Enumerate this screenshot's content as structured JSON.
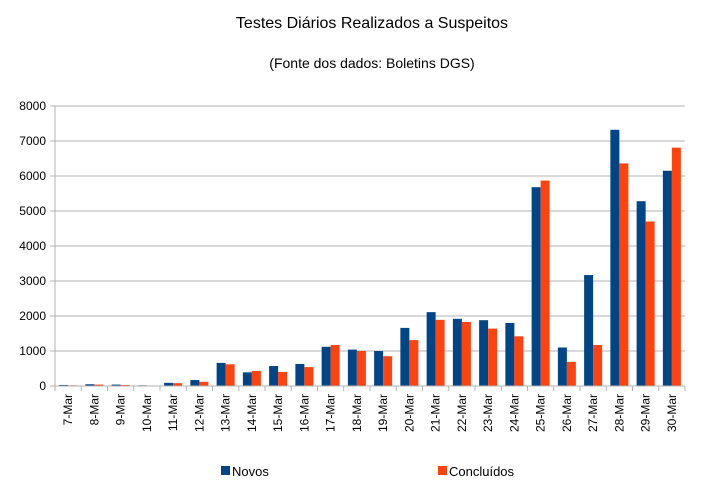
{
  "chart_data": {
    "type": "bar",
    "title": "Testes Diários Realizados a Suspeitos",
    "subtitle": "(Fonte dos dados: Boletins DGS)",
    "xlabel": "",
    "ylabel": "",
    "ylim": [
      0,
      8000
    ],
    "yticks": [
      0,
      1000,
      2000,
      3000,
      4000,
      5000,
      6000,
      7000,
      8000
    ],
    "grid": true,
    "legend_position": "bottom",
    "categories": [
      "7-Mar",
      "8-Mar",
      "9-Mar",
      "10-Mar",
      "11-Mar",
      "12-Mar",
      "13-Mar",
      "14-Mar",
      "15-Mar",
      "16-Mar",
      "17-Mar",
      "18-Mar",
      "19-Mar",
      "20-Mar",
      "21-Mar",
      "22-Mar",
      "23-Mar",
      "24-Mar",
      "25-Mar",
      "26-Mar",
      "27-Mar",
      "28-Mar",
      "29-Mar",
      "30-Mar"
    ],
    "series": [
      {
        "name": "Novos",
        "color": "#004586",
        "values": [
          30,
          50,
          40,
          20,
          90,
          170,
          660,
          390,
          570,
          630,
          1120,
          1040,
          1000,
          1660,
          2110,
          1920,
          1880,
          1800,
          5680,
          1100,
          3170,
          7320,
          5280,
          6150
        ]
      },
      {
        "name": "Concluídos",
        "color": "#ff420e",
        "values": [
          20,
          40,
          30,
          10,
          80,
          120,
          620,
          430,
          400,
          540,
          1170,
          1000,
          850,
          1310,
          1890,
          1830,
          1640,
          1420,
          5870,
          690,
          1170,
          6360,
          4700,
          6810
        ]
      }
    ]
  }
}
